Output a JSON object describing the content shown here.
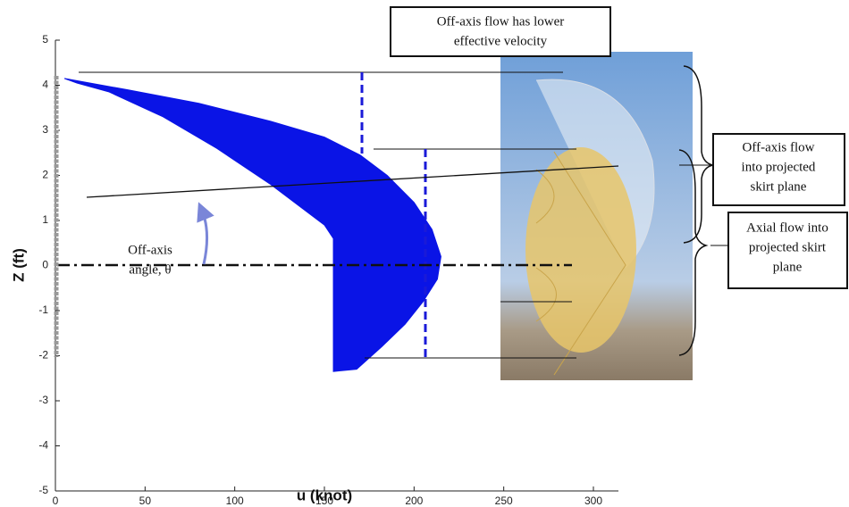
{
  "chart_data": {
    "type": "area",
    "x_label": "u (knot)",
    "y_label": "Z (ft)",
    "xlim": [
      0,
      300
    ],
    "ylim": [
      -5,
      5
    ],
    "xticks": [
      0,
      50,
      100,
      150,
      200,
      250,
      300
    ],
    "yticks": [
      -5,
      -4,
      -3,
      -2,
      -1,
      0,
      1,
      2,
      3,
      4,
      5
    ],
    "color": "#0a14e6",
    "profile": {
      "u": [
        5,
        40,
        80,
        120,
        150,
        170,
        185,
        200,
        210,
        215,
        213,
        205,
        195,
        182,
        168,
        155,
        155,
        155,
        155,
        150,
        120,
        90,
        60,
        30,
        12
      ],
      "z": [
        4.15,
        3.9,
        3.6,
        3.2,
        2.85,
        2.45,
        2.0,
        1.4,
        0.8,
        0.2,
        -0.3,
        -0.8,
        -1.3,
        -1.8,
        -2.3,
        -2.35,
        -1.5,
        -0.5,
        0.6,
        0.9,
        1.8,
        2.6,
        3.3,
        3.85,
        4.05
      ]
    },
    "annotations": [
      {
        "lines": [
          "Off-axis flow has lower",
          "effective velocity"
        ]
      },
      {
        "lines": [
          "Off-axis flow",
          "into projected",
          "skirt plane"
        ]
      },
      {
        "lines": [
          "Axial flow into",
          "projected skirt",
          "plane"
        ]
      },
      {
        "lines": [
          "Off-axis",
          "angle, θ"
        ]
      }
    ]
  }
}
